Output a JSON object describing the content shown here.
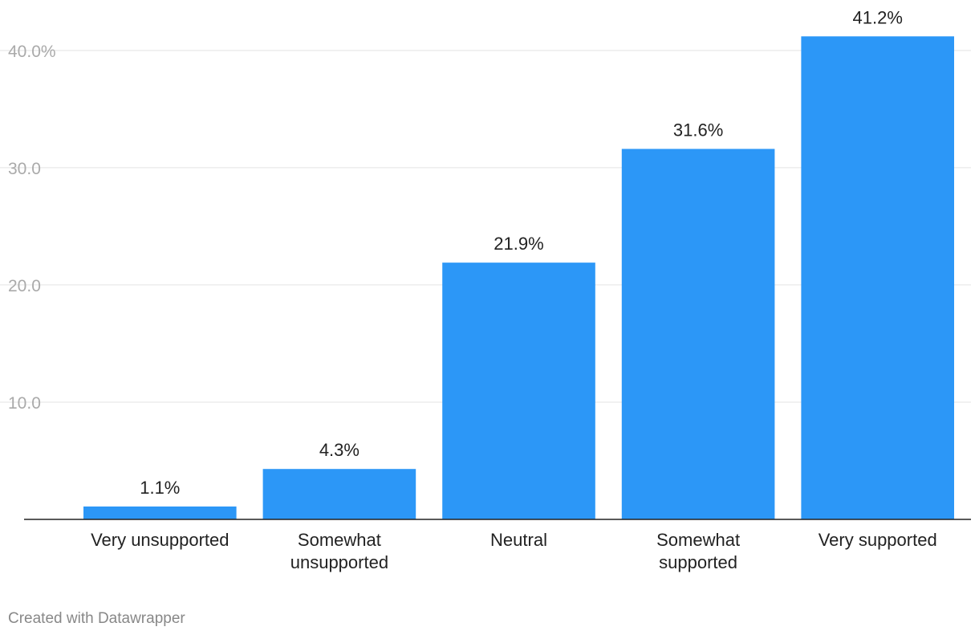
{
  "chart_data": {
    "type": "bar",
    "categories": [
      [
        "Very unsupported"
      ],
      [
        "Somewhat",
        "unsupported"
      ],
      [
        "Neutral"
      ],
      [
        "Somewhat",
        "supported"
      ],
      [
        "Very supported"
      ]
    ],
    "values": [
      1.1,
      4.3,
      21.9,
      31.6,
      41.2
    ],
    "value_labels": [
      "1.1%",
      "4.3%",
      "21.9%",
      "31.6%",
      "41.2%"
    ],
    "yticks": [
      10,
      20,
      30,
      40
    ],
    "ytick_labels": [
      "10.0",
      "20.0",
      "30.0",
      "40.0%"
    ],
    "ylim": [
      0,
      43
    ],
    "grid": true,
    "bar_color": "#2c97f7"
  },
  "footer": {
    "credit": "Created with Datawrapper"
  }
}
